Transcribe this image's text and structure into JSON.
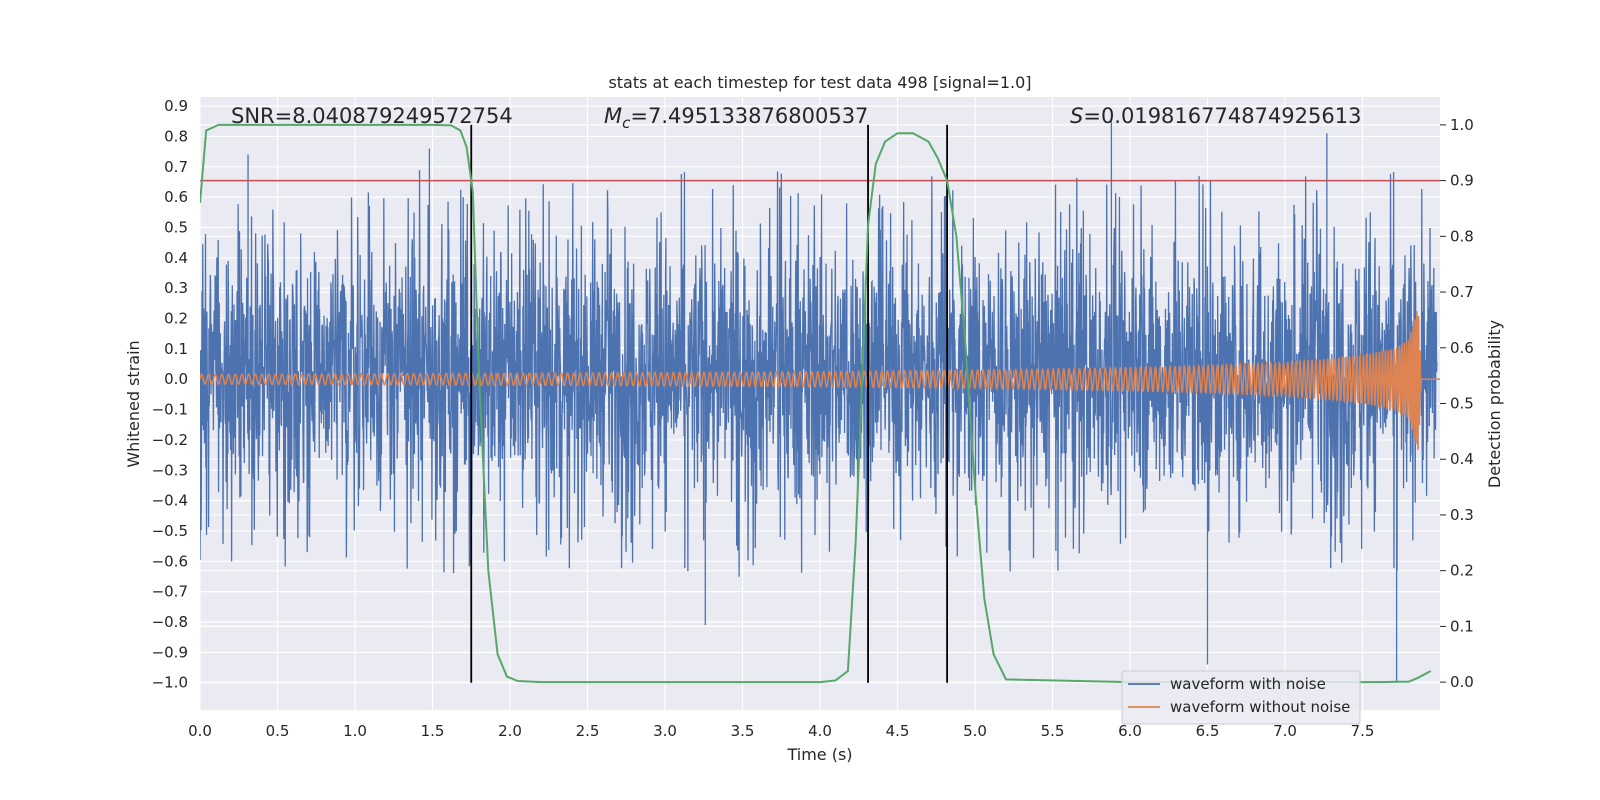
{
  "chart_data": {
    "type": "line",
    "title": "stats at each timestep for test data 498 [signal=1.0]",
    "xlabel": "Time (s)",
    "ylabel_left": "Whitened strain",
    "ylabel_right": "Detection probability",
    "xlim": [
      0.0,
      8.0
    ],
    "ylim_left": [
      -1.09,
      0.93
    ],
    "ylim_right": [
      -0.05,
      1.05
    ],
    "grid": true,
    "x_ticks": [
      "0.0",
      "0.5",
      "1.0",
      "1.5",
      "2.0",
      "2.5",
      "3.0",
      "3.5",
      "4.0",
      "4.5",
      "5.0",
      "5.5",
      "6.0",
      "6.5",
      "7.0",
      "7.5"
    ],
    "y_ticks_left": [
      "0.9",
      "0.8",
      "0.7",
      "0.6",
      "0.5",
      "0.4",
      "0.3",
      "0.2",
      "0.1",
      "0.0",
      "−0.1",
      "−0.2",
      "−0.3",
      "−0.4",
      "−0.5",
      "−0.6",
      "−0.7",
      "−0.8",
      "−0.9",
      "−1.0"
    ],
    "y_ticks_right": [
      "1.0",
      "0.9",
      "0.8",
      "0.7",
      "0.6",
      "0.5",
      "0.4",
      "0.3",
      "0.2",
      "0.1",
      "0.0"
    ],
    "annotations": {
      "snr": "SNR=8.040879249572754",
      "mc": "=7.495133876800537",
      "mc_symbol": "M",
      "mc_sub": "c",
      "s": "=0.019816774874925613",
      "s_symbol": "S"
    },
    "threshold": {
      "value": 0.9,
      "axis": "right",
      "color": "#c44e52"
    },
    "vlines": [
      1.75,
      4.31,
      4.82
    ],
    "legend": {
      "position": "lower-right",
      "entries": [
        "waveform with noise",
        "waveform without noise"
      ]
    },
    "colors": {
      "noise": "#4c72b0",
      "clean": "#dd8452",
      "probability": "#55a868",
      "vline": "#000000",
      "background": "#eaeaf2",
      "grid": "#ffffff"
    },
    "series": [
      {
        "name": "waveform with noise",
        "axis": "left",
        "description_points": {
          "x_range": [
            0.0,
            7.98
          ],
          "typical_envelope": [
            -0.45,
            0.5
          ],
          "peaks": [
            [
              0.31,
              0.74
            ],
            [
              1.48,
              0.76
            ],
            [
              5.88,
              0.85
            ],
            [
              7.27,
              0.81
            ],
            [
              6.5,
              -0.94
            ],
            [
              7.72,
              -1.0
            ],
            [
              3.26,
              -0.81
            ]
          ]
        }
      },
      {
        "name": "waveform without noise",
        "axis": "left",
        "envelope_x": [
          0.0,
          1.0,
          2.0,
          3.0,
          4.0,
          5.0,
          6.0,
          6.5,
          7.0,
          7.3,
          7.5,
          7.7,
          7.8,
          7.86,
          7.88,
          8.0
        ],
        "envelope_amp": [
          0.016,
          0.018,
          0.02,
          0.022,
          0.025,
          0.03,
          0.038,
          0.045,
          0.055,
          0.068,
          0.08,
          0.1,
          0.13,
          0.24,
          0.0,
          0.0
        ]
      },
      {
        "name": "detection probability",
        "axis": "right",
        "x": [
          0.0,
          0.04,
          0.12,
          0.3,
          1.0,
          1.5,
          1.62,
          1.68,
          1.72,
          1.76,
          1.8,
          1.86,
          1.92,
          1.98,
          2.05,
          2.2,
          3.0,
          4.0,
          4.1,
          4.18,
          4.23,
          4.28,
          4.31,
          4.36,
          4.42,
          4.5,
          4.6,
          4.7,
          4.76,
          4.82,
          4.88,
          4.94,
          5.0,
          5.06,
          5.12,
          5.2,
          6.0,
          7.0,
          7.6,
          7.8,
          7.86,
          7.94
        ],
        "y": [
          0.86,
          0.99,
          1.0,
          1.0,
          1.0,
          1.0,
          0.999,
          0.99,
          0.96,
          0.88,
          0.55,
          0.2,
          0.05,
          0.01,
          0.002,
          0.0,
          0.0,
          0.0,
          0.003,
          0.02,
          0.25,
          0.6,
          0.82,
          0.93,
          0.97,
          0.985,
          0.985,
          0.97,
          0.94,
          0.9,
          0.8,
          0.6,
          0.35,
          0.15,
          0.05,
          0.005,
          0.0,
          0.0,
          0.0,
          0.001,
          0.008,
          0.02
        ]
      }
    ]
  }
}
